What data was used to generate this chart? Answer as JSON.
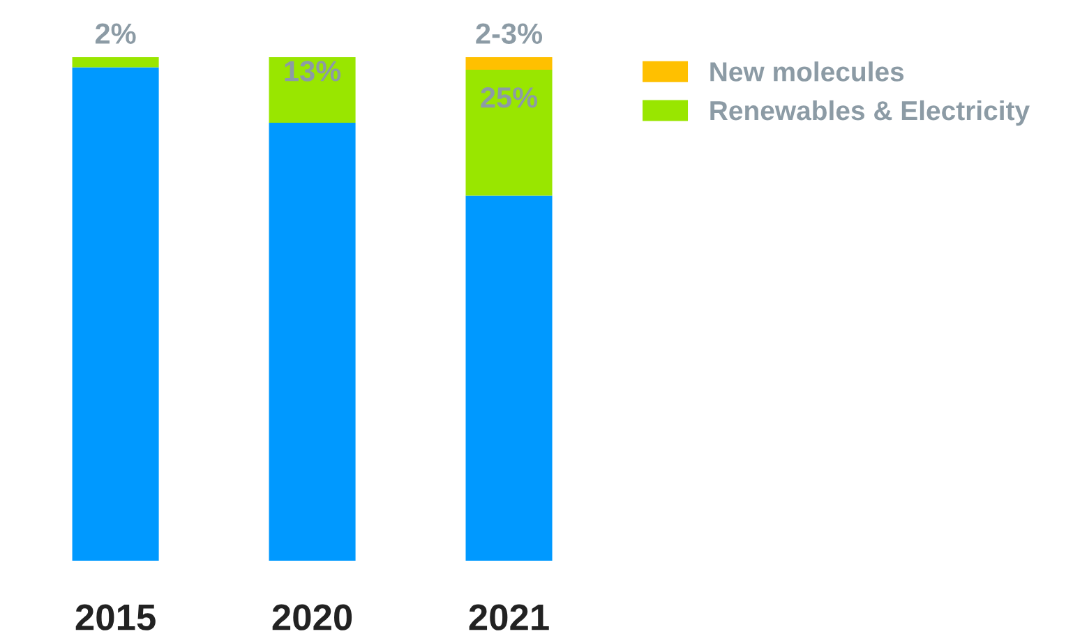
{
  "chart_data": {
    "type": "bar",
    "stacked": true,
    "categories": [
      "2015",
      "2020",
      "2021"
    ],
    "ylim": [
      0,
      100
    ],
    "tick_labels": "x",
    "legend": "top right",
    "series": [
      {
        "color": "#0099ff",
        "values": [
          98,
          87,
          72.5
        ]
      },
      {
        "name": "Renewables & Electricity",
        "color": "#99e600",
        "values": [
          2,
          13,
          25
        ],
        "value_labels": [
          "2%",
          "13%",
          "25%"
        ]
      },
      {
        "name": "New molecules",
        "color": "#ffc000",
        "values": [
          null,
          null,
          2.5
        ],
        "value_labels": [
          null,
          null,
          "2-3%"
        ]
      }
    ]
  }
}
